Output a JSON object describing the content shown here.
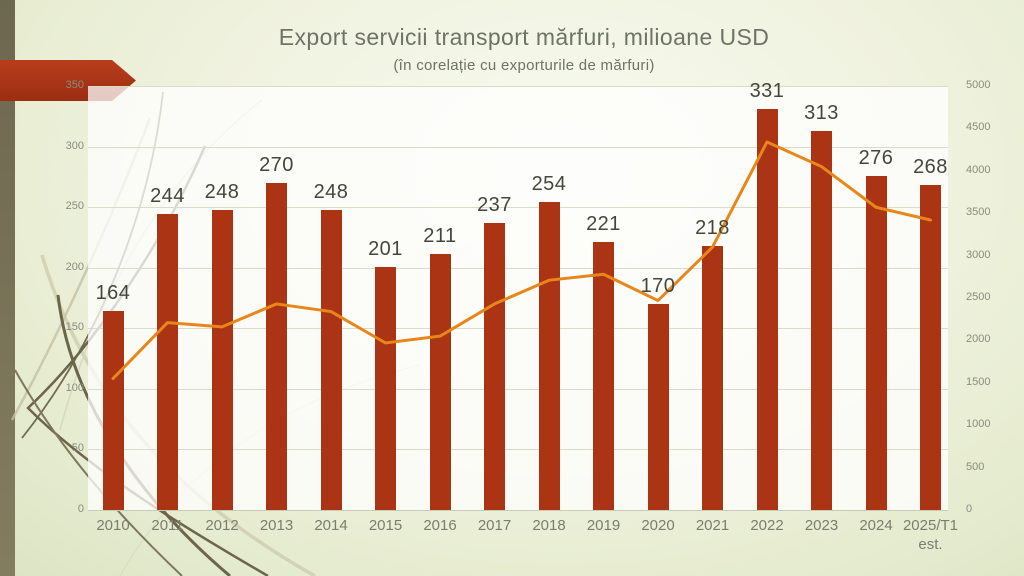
{
  "slide": {
    "title": "Export servicii transport mărfuri, milioane USD",
    "subtitle": "(în corelație cu exporturile de mărfuri)"
  },
  "colors": {
    "bar": "#ab3414",
    "line": "#e8861a",
    "banner_arrow": "#ae3517",
    "left_strip": "#6f6951",
    "title_text": "#6e7366",
    "value_label_text": "#45463b",
    "axis_text": "#8b8c7e",
    "gridline": "#d9dcc8",
    "plot_fill": "#fbfcf4"
  },
  "chart_data": {
    "type": "bar",
    "subtype": "combo-bar-line",
    "title": "Export servicii transport mărfuri, milioane USD",
    "subtitle": "(în corelație cu exporturile de mărfuri)",
    "categories": [
      "2010",
      "2011",
      "2012",
      "2013",
      "2014",
      "2015",
      "2016",
      "2017",
      "2018",
      "2019",
      "2020",
      "2021",
      "2022",
      "2023",
      "2024",
      "2025/T1\nest."
    ],
    "series": [
      {
        "name": "Export servicii transport mărfuri (mil. USD)",
        "type": "bar",
        "axis": "left",
        "values": [
          164,
          244,
          248,
          270,
          248,
          201,
          211,
          237,
          254,
          221,
          170,
          218,
          331,
          313,
          276,
          268
        ],
        "labels_shown": true
      },
      {
        "name": "Exporturile de mărfuri (mil. USD)",
        "type": "line",
        "axis": "right",
        "values": [
          1550,
          2210,
          2160,
          2430,
          2340,
          1970,
          2050,
          2430,
          2710,
          2780,
          2470,
          3100,
          4340,
          4050,
          3570,
          3420
        ],
        "labels_shown": false
      }
    ],
    "left_axis": {
      "min": 0,
      "max": 350,
      "step": 50,
      "tick_labels": [
        "0",
        "50",
        "100",
        "150",
        "200",
        "250",
        "300",
        "350"
      ]
    },
    "right_axis": {
      "min": 0,
      "max": 5000,
      "step": 500,
      "tick_labels": [
        "0",
        "500",
        "1000",
        "1500",
        "2000",
        "2500",
        "3000",
        "3500",
        "4000",
        "4500",
        "5000"
      ]
    },
    "grid": true,
    "legend": "none"
  }
}
